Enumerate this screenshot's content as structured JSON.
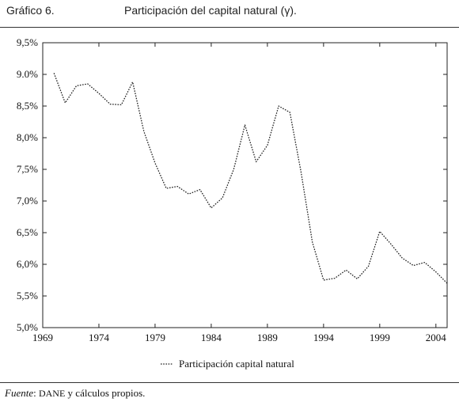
{
  "header": {
    "label": "Gráfico 6.",
    "title": "Participación del capital natural (γ)."
  },
  "chart_data": {
    "type": "line",
    "title": "Participación del capital natural (γ).",
    "xlabel": "",
    "ylabel": "",
    "xlim": [
      1969,
      2005
    ],
    "ylim": [
      5.0,
      9.5
    ],
    "x_ticks": [
      "1969",
      "1974",
      "1979",
      "1984",
      "1989",
      "1994",
      "1999",
      "2004"
    ],
    "y_ticks": [
      "5,0%",
      "5,5%",
      "6,0%",
      "6,5%",
      "7,0%",
      "7,5%",
      "8,0%",
      "8,5%",
      "9.0%",
      "9,5%"
    ],
    "grid": false,
    "legend_position": "bottom",
    "series": [
      {
        "name": "Participación capital natural",
        "style": "dotted",
        "color": "#222222",
        "x": [
          1970,
          1971,
          1972,
          1973,
          1974,
          1975,
          1976,
          1977,
          1978,
          1979,
          1980,
          1981,
          1982,
          1983,
          1984,
          1985,
          1986,
          1987,
          1988,
          1989,
          1990,
          1991,
          1992,
          1993,
          1994,
          1995,
          1996,
          1997,
          1998,
          1999,
          2000,
          2001,
          2002,
          2003,
          2004,
          2005
        ],
        "y": [
          9.02,
          8.55,
          8.82,
          8.85,
          8.7,
          8.53,
          8.52,
          8.88,
          8.1,
          7.6,
          7.2,
          7.23,
          7.11,
          7.18,
          6.89,
          7.05,
          7.5,
          8.2,
          7.62,
          7.88,
          8.5,
          8.4,
          7.45,
          6.35,
          5.75,
          5.78,
          5.91,
          5.77,
          5.97,
          6.52,
          6.32,
          6.1,
          5.98,
          6.03,
          5.88,
          5.7
        ]
      }
    ]
  },
  "source": {
    "prefix": "Fuente",
    "colon": ":",
    "org": "DANE",
    "rest": " y cálculos propios."
  }
}
